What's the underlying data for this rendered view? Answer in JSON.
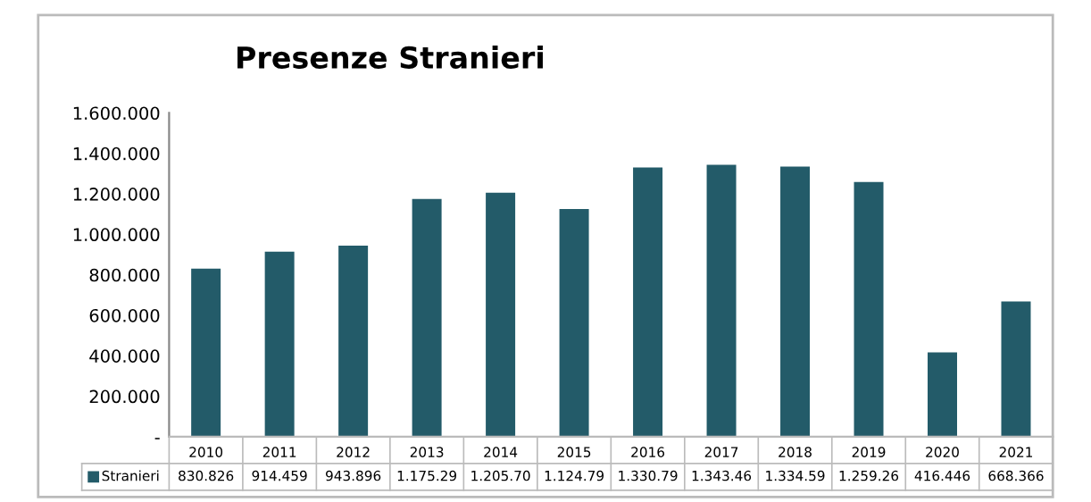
{
  "chart_data": {
    "type": "bar",
    "title": "Presenze Stranieri",
    "categories": [
      "2010",
      "2011",
      "2012",
      "2013",
      "2014",
      "2015",
      "2016",
      "2017",
      "2018",
      "2019",
      "2020",
      "2021"
    ],
    "series": [
      {
        "name": "Stranieri",
        "color": "#235b69",
        "values": [
          830826,
          914459,
          943896,
          1175290,
          1205700,
          1124790,
          1330790,
          1343460,
          1334590,
          1259260,
          416446,
          668366
        ],
        "value_labels": [
          "830.826",
          "914.459",
          "943.896",
          "1.175.29",
          "1.205.70",
          "1.124.79",
          "1.330.79",
          "1.343.46",
          "1.334.59",
          "1.259.26",
          "416.446",
          "668.366"
        ]
      }
    ],
    "ylim": [
      0,
      1600000
    ],
    "yticks": [
      {
        "value": 0,
        "label": "-"
      },
      {
        "value": 200000,
        "label": "200.000"
      },
      {
        "value": 400000,
        "label": "400.000"
      },
      {
        "value": 600000,
        "label": "600.000"
      },
      {
        "value": 800000,
        "label": "800.000"
      },
      {
        "value": 1000000,
        "label": "1.000.000"
      },
      {
        "value": 1200000,
        "label": "1.200.000"
      },
      {
        "value": 1400000,
        "label": "1.400.000"
      },
      {
        "value": 1600000,
        "label": "1.600.000"
      }
    ],
    "grid": false,
    "legend": "bottom"
  }
}
